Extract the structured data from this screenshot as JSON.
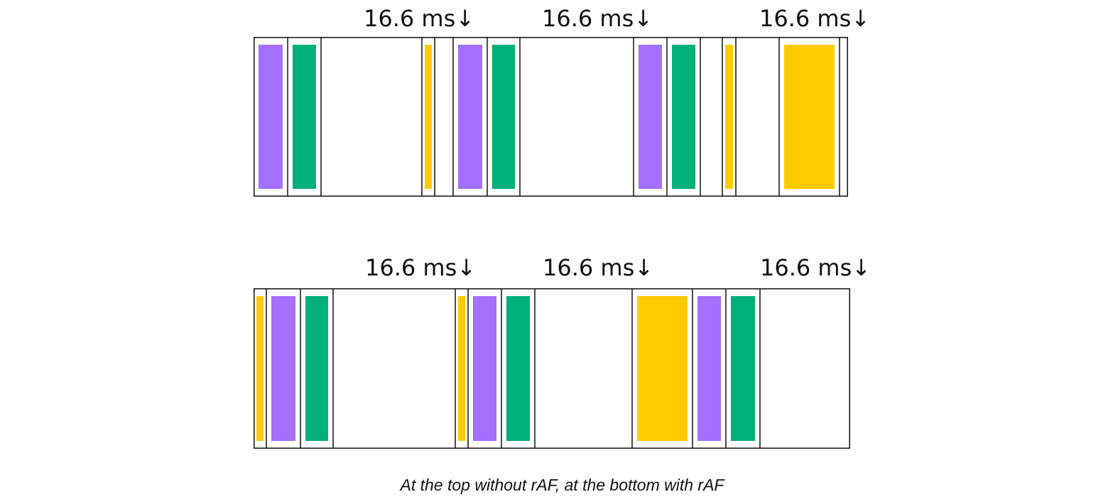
{
  "colors": {
    "purple": "#a370ff",
    "green": "#00b07a",
    "yellow": "#ffcb00",
    "border": "#111111"
  },
  "timelines": [
    {
      "name": "without-raf",
      "frame_labels": [
        "16.6 ms↓",
        "16.6 ms↓",
        "16.6 ms↓"
      ],
      "blocks": [
        {
          "type": "purple"
        },
        {
          "type": "green"
        },
        {
          "type": "empty"
        },
        {
          "type": "yellow-thin"
        },
        {
          "type": "empty"
        },
        {
          "type": "purple"
        },
        {
          "type": "green"
        },
        {
          "type": "empty"
        },
        {
          "type": "purple"
        },
        {
          "type": "green"
        },
        {
          "type": "empty"
        },
        {
          "type": "yellow-thin"
        },
        {
          "type": "empty"
        },
        {
          "type": "yellow"
        },
        {
          "type": "empty"
        }
      ]
    },
    {
      "name": "with-raf",
      "frame_labels": [
        "16.6 ms↓",
        "16.6 ms↓",
        "16.6 ms↓"
      ],
      "blocks": [
        {
          "type": "yellow-thin"
        },
        {
          "type": "purple"
        },
        {
          "type": "green"
        },
        {
          "type": "empty"
        },
        {
          "type": "yellow-thin"
        },
        {
          "type": "purple"
        },
        {
          "type": "green"
        },
        {
          "type": "empty"
        },
        {
          "type": "yellow"
        },
        {
          "type": "purple"
        },
        {
          "type": "green"
        },
        {
          "type": "empty"
        }
      ]
    }
  ],
  "caption": "At the top without rAF, at the bottom with rAF"
}
